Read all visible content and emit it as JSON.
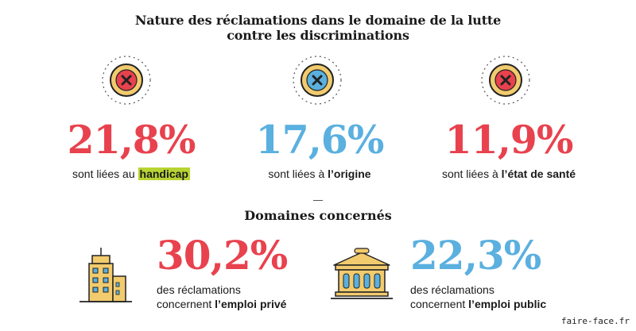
{
  "title": "Nature des réclamations dans le domaine de la lutte contre les discriminations",
  "title_lines": [
    "Nature des réclamations dans le domaine de la lutte",
    "contre les discriminations"
  ],
  "colors": {
    "red": "#e8424e",
    "blue": "#5ab0df",
    "yellow": "#f2cb6e",
    "highlight": "#b8d432"
  },
  "stats": [
    {
      "value": "21,8%",
      "caption_prefix": "sont liées au ",
      "caption_bold": "handicap",
      "color": "#e8424e",
      "icon": "cross-red-icon"
    },
    {
      "value": "17,6%",
      "caption_prefix": "sont liées à ",
      "caption_bold": "l’origine",
      "color": "#5ab0df",
      "icon": "cross-blue-icon"
    },
    {
      "value": "11,9%",
      "caption_prefix": "sont liées à ",
      "caption_bold": "l’état de santé",
      "color": "#e8424e",
      "icon": "cross-red-icon"
    }
  ],
  "subtitle": "Domaines concernés",
  "domains": [
    {
      "value": "30,2%",
      "line1": "des réclamations",
      "line2_prefix": "concernent ",
      "line2_bold": "l’emploi privé",
      "color": "#e8424e",
      "icon": "office-building-icon"
    },
    {
      "value": "22,3%",
      "line1": "des réclamations",
      "line2_prefix": "concernent ",
      "line2_bold": "l’emploi public",
      "color": "#5ab0df",
      "icon": "public-building-icon"
    }
  ],
  "footer": "faire-face.fr",
  "chart_data": {
    "type": "table",
    "title": "Nature des réclamations dans le domaine de la lutte contre les discriminations",
    "categories": [
      "handicap",
      "l’origine",
      "l’état de santé"
    ],
    "values": [
      21.8,
      17.6,
      11.9
    ],
    "unit": "%",
    "subtitle": "Domaines concernés",
    "domains": {
      "categories": [
        "l’emploi privé",
        "l’emploi public"
      ],
      "values": [
        30.2,
        22.3
      ],
      "unit": "%"
    }
  }
}
